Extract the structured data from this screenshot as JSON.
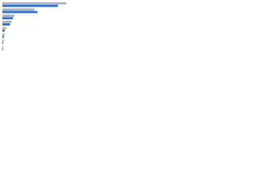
{
  "chart_data": {
    "type": "hbar",
    "categories": [
      null,
      null,
      null,
      null,
      null,
      null,
      null,
      null
    ],
    "series": [
      {
        "color": "#a9b4c2",
        "values": [
          84,
          42,
          16,
          12,
          5,
          3,
          2,
          1
        ]
      },
      {
        "color": "#2f6fd0",
        "values": [
          73,
          46,
          14,
          10,
          3,
          2,
          1,
          1
        ]
      }
    ],
    "xlim": [
      0,
      100
    ]
  }
}
